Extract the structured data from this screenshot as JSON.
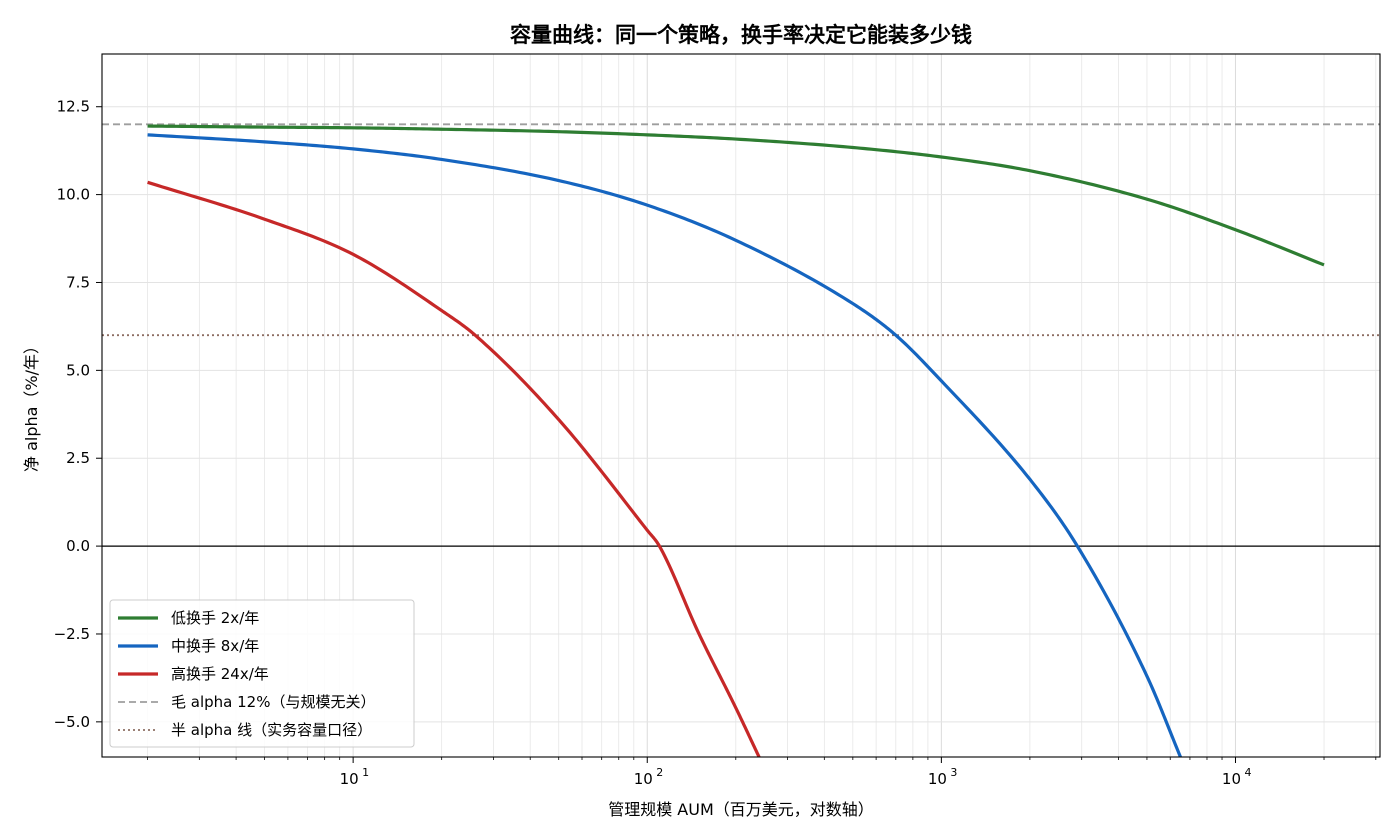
{
  "chart_data": {
    "type": "line",
    "title": "容量曲线：同一个策略，换手率决定它能装多少钱",
    "xlabel": "管理规模 AUM（百万美元，对数轴）",
    "ylabel": "净 alpha（%/年）",
    "xscale": "log",
    "xlim": [
      1.4,
      31000
    ],
    "ylim": [
      -6.0,
      14.0
    ],
    "grid": "both, light grey, major and minor on log x",
    "legend_position": "lower-left",
    "x_ticks": [
      10,
      100,
      1000,
      10000
    ],
    "x_tick_labels": [
      {
        "base": "10",
        "exp": "1"
      },
      {
        "base": "10",
        "exp": "2"
      },
      {
        "base": "10",
        "exp": "3"
      },
      {
        "base": "10",
        "exp": "4"
      }
    ],
    "y_ticks": [
      -5.0,
      -2.5,
      0.0,
      2.5,
      5.0,
      7.5,
      10.0,
      12.5
    ],
    "y_tick_labels": [
      "−5.0",
      "−2.5",
      "0.0",
      "2.5",
      "5.0",
      "7.5",
      "10.0",
      "12.5"
    ],
    "series": [
      {
        "name": "低换手 2x/年",
        "color": "#2e7d32",
        "x": [
          2,
          5,
          10,
          20,
          50,
          100,
          200,
          500,
          1000,
          2000,
          5000,
          10000,
          20000
        ],
        "y": [
          11.95,
          11.92,
          11.9,
          11.86,
          11.79,
          11.7,
          11.58,
          11.34,
          11.07,
          10.68,
          9.87,
          9.0,
          8.0
        ]
      },
      {
        "name": "中换手 8x/年",
        "color": "#1565c0",
        "x": [
          2,
          5,
          10,
          20,
          50,
          100,
          200,
          500,
          700,
          1000,
          2000,
          2900,
          5000,
          6500
        ],
        "y": [
          11.7,
          11.5,
          11.3,
          11.0,
          10.4,
          9.7,
          8.7,
          6.9,
          6.0,
          4.7,
          1.9,
          0.0,
          -3.7,
          -6.0
        ]
      },
      {
        "name": "高换手 24x/年",
        "color": "#c62828",
        "x": [
          2,
          5,
          10,
          20,
          26,
          50,
          100,
          110,
          150,
          200,
          240
        ],
        "y": [
          10.35,
          9.3,
          8.3,
          6.7,
          6.0,
          3.6,
          0.45,
          0.0,
          -2.5,
          -4.6,
          -6.0
        ]
      }
    ],
    "reference_lines": [
      {
        "name": "毛 alpha 12%（与规模无关）",
        "y": 12.0,
        "style": "dashed",
        "color": "#9e9e9e"
      },
      {
        "name": "半 alpha 线（实务容量口径）",
        "y": 6.0,
        "style": "dotted",
        "color": "#8d6e63"
      },
      {
        "name": "",
        "y": 0.0,
        "style": "solid",
        "color": "#000000"
      }
    ]
  }
}
